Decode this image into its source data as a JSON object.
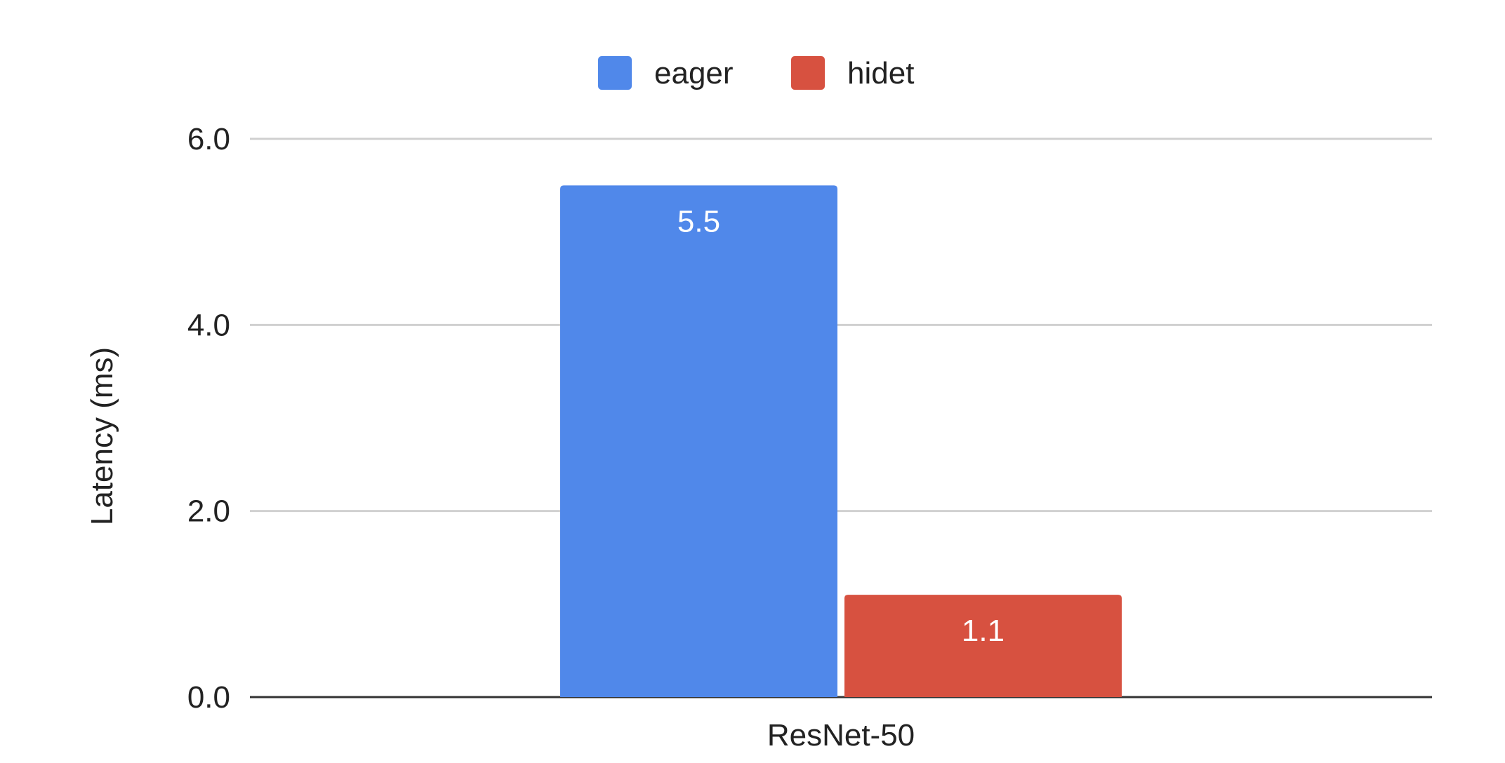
{
  "chart_data": {
    "type": "bar",
    "categories": [
      "ResNet-50"
    ],
    "series": [
      {
        "name": "eager",
        "values": [
          5.5
        ],
        "color": "#5088EA",
        "value_labels": [
          "5.5"
        ]
      },
      {
        "name": "hidet",
        "values": [
          1.1
        ],
        "color": "#D75140",
        "value_labels": [
          "1.1"
        ]
      }
    ],
    "title": "",
    "xlabel": "",
    "ylabel": "Latency (ms)",
    "ylim": [
      0,
      6
    ],
    "yticks": [
      0,
      2,
      4,
      6
    ],
    "ytick_labels": [
      "0.0",
      "2.0",
      "4.0",
      "6.0"
    ],
    "grid": true,
    "legend": "top-center",
    "colors": {
      "grid": "#D0D0D0",
      "axis": "#333333",
      "text": "#222222",
      "data_label": "#FFFFFF"
    }
  }
}
